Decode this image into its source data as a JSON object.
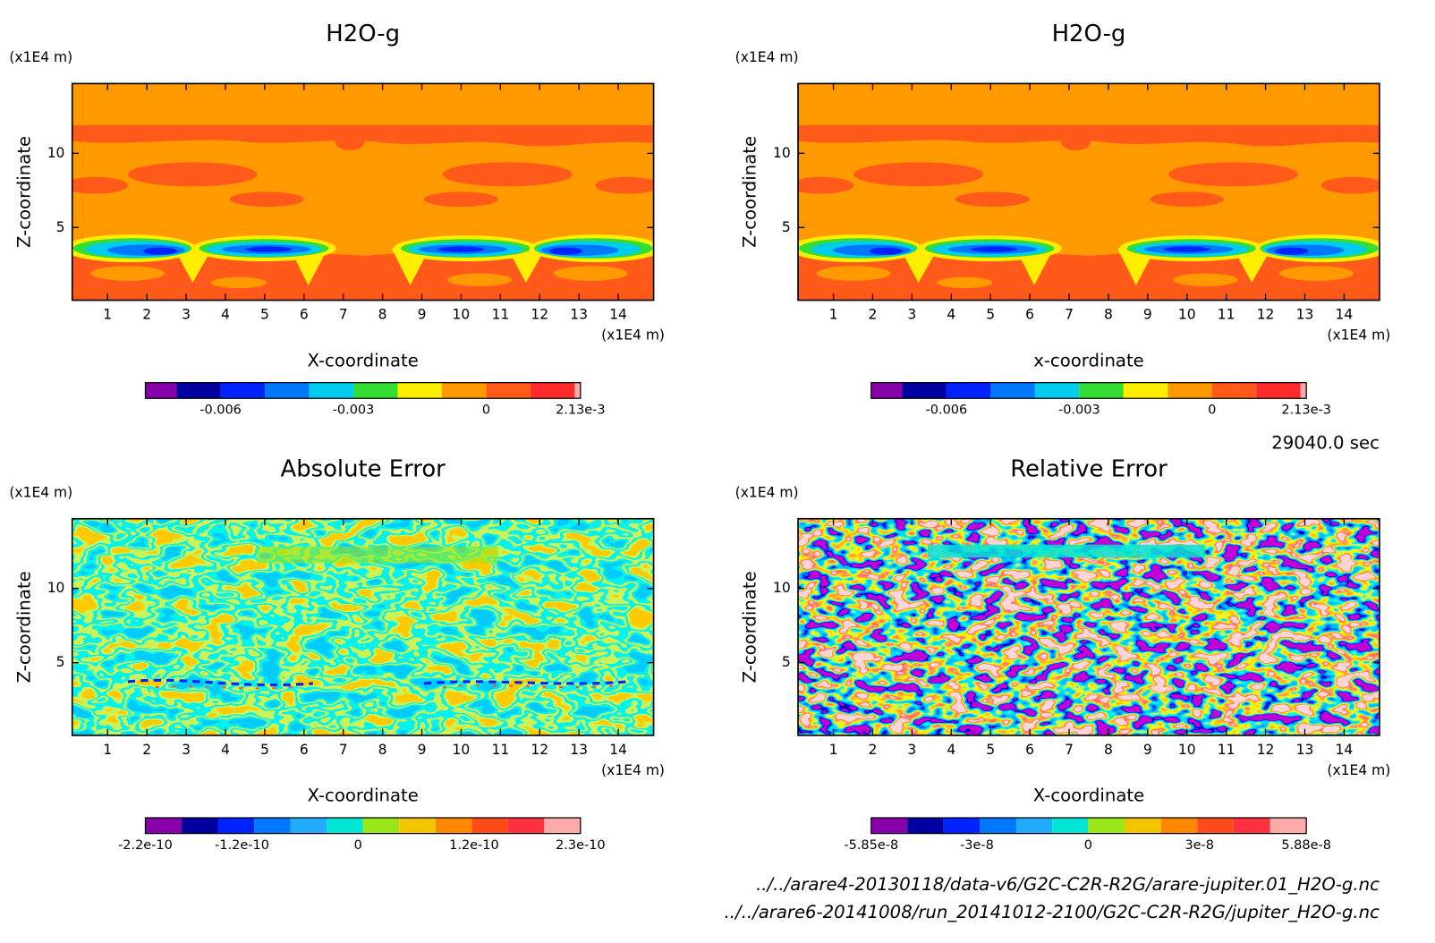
{
  "chart_data": [
    {
      "type": "contour",
      "title": "H2O-g",
      "x_label": "X-coordinate",
      "y_label": "Z-coordinate",
      "x_unit": "(x1E4 m)",
      "y_unit": "(x1E4 m)",
      "xlim": [
        0.1,
        14.9
      ],
      "ylim": [
        0.1,
        14.7
      ],
      "xticks": [
        1,
        2,
        3,
        4,
        5,
        6,
        7,
        8,
        9,
        10,
        11,
        12,
        13,
        14
      ],
      "yticks": [
        5,
        10
      ],
      "colorbar": {
        "colors": [
          "#8800aa",
          "#0000a0",
          "#0022ff",
          "#0077ff",
          "#00ccee",
          "#33dd33",
          "#ffee00",
          "#ff9900",
          "#ff5a1a",
          "#ff2a2a",
          "#ffaaaa"
        ],
        "levels": [
          -0.0077,
          -0.007,
          -0.006,
          -0.005,
          -0.004,
          -0.003,
          -0.002,
          -0.001,
          0,
          0.001,
          0.002,
          0.00213
        ],
        "ticks": [
          -0.006,
          -0.003,
          0,
          {
            "value": 0.00213,
            "label": "2.13e-3"
          }
        ]
      }
    },
    {
      "type": "contour",
      "title": "H2O-g",
      "x_label": "x-coordinate",
      "y_label": "Z-coordinate",
      "x_unit": "(x1E4 m)",
      "y_unit": "(x1E4 m)",
      "xlim": [
        0.1,
        14.9
      ],
      "ylim": [
        0.1,
        14.7
      ],
      "xticks": [
        1,
        2,
        3,
        4,
        5,
        6,
        7,
        8,
        9,
        10,
        11,
        12,
        13,
        14
      ],
      "yticks": [
        5,
        10
      ],
      "colorbar": {
        "colors": [
          "#8800aa",
          "#0000a0",
          "#0022ff",
          "#0077ff",
          "#00ccee",
          "#33dd33",
          "#ffee00",
          "#ff9900",
          "#ff5a1a",
          "#ff2a2a",
          "#ffaaaa"
        ],
        "levels": [
          -0.0077,
          -0.007,
          -0.006,
          -0.005,
          -0.004,
          -0.003,
          -0.002,
          -0.001,
          0,
          0.001,
          0.002,
          0.00213
        ],
        "ticks": [
          -0.006,
          -0.003,
          0,
          {
            "value": 0.00213,
            "label": "2.13e-3"
          }
        ]
      }
    },
    {
      "type": "contour",
      "title": "Absolute Error",
      "x_label": "X-coordinate",
      "y_label": "Z-coordinate",
      "x_unit": "(x1E4 m)",
      "y_unit": "(x1E4 m)",
      "xlim": [
        0.1,
        14.9
      ],
      "ylim": [
        0.1,
        14.7
      ],
      "xticks": [
        1,
        2,
        3,
        4,
        5,
        6,
        7,
        8,
        9,
        10,
        11,
        12,
        13,
        14
      ],
      "yticks": [
        5,
        10
      ],
      "colorbar": {
        "colors": [
          "#8800aa",
          "#0000a0",
          "#0022ff",
          "#0077ff",
          "#22aaff",
          "#00e5d5",
          "#99e619",
          "#f5c400",
          "#ff8800",
          "#ff4a1a",
          "#ff3040",
          "#ffaaaa"
        ],
        "levels": [
          -2.2e-10,
          -1.825e-10,
          -1.45e-10,
          -1.075e-10,
          -7e-11,
          -3.25e-11,
          5e-12,
          4.25e-11,
          8e-11,
          1.175e-10,
          1.55e-10,
          1.925e-10,
          2.3e-10
        ],
        "ticks": [
          -2.2e-10,
          -1.2e-10,
          0,
          1.2e-10,
          2.3e-10
        ]
      }
    },
    {
      "type": "contour",
      "title": "Relative Error",
      "x_label": "X-coordinate",
      "y_label": "Z-coordinate",
      "x_unit": "(x1E4 m)",
      "y_unit": "(x1E4 m)",
      "xlim": [
        0.1,
        14.9
      ],
      "ylim": [
        0.1,
        14.7
      ],
      "xticks": [
        1,
        2,
        3,
        4,
        5,
        6,
        7,
        8,
        9,
        10,
        11,
        12,
        13,
        14
      ],
      "yticks": [
        5,
        10
      ],
      "colorbar": {
        "colors": [
          "#8800aa",
          "#0000a0",
          "#0022ff",
          "#0077ff",
          "#22aaff",
          "#00e5d5",
          "#99e619",
          "#f5c400",
          "#ff8800",
          "#ff4a1a",
          "#ff3040",
          "#ffaaaa"
        ],
        "levels": [
          -5.85e-08,
          -4.87e-08,
          -3.9e-08,
          -2.92e-08,
          -1.94e-08,
          -9.7e-09,
          0,
          9.8e-09,
          1.96e-08,
          2.94e-08,
          3.92e-08,
          4.9e-08,
          5.88e-08
        ],
        "ticks": [
          -5.85e-08,
          -3e-08,
          0,
          3e-08,
          5.88e-08
        ]
      }
    }
  ],
  "annotations": {
    "time": "29040.0 sec",
    "files": [
      "../../arare4-20130118/data-v6/G2C-C2R-R2G/arare-jupiter.01_H2O-g.nc",
      "../../arare6-20141008/run_20141012-2100/G2C-C2R-R2G/jupiter_H2O-g.nc"
    ]
  }
}
